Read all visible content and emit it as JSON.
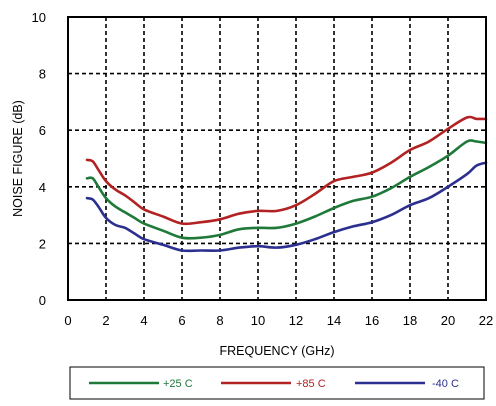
{
  "chart_data": {
    "type": "line",
    "title": "",
    "xlabel": "FREQUENCY (GHz)",
    "ylabel": "NOISE FIGURE (dB)",
    "xlim": [
      0,
      22
    ],
    "ylim": [
      0,
      10
    ],
    "xticks": [
      0,
      2,
      4,
      6,
      8,
      10,
      12,
      14,
      16,
      18,
      20,
      22
    ],
    "yticks": [
      0,
      2,
      4,
      6,
      8,
      10
    ],
    "grid": true,
    "legend_position": "bottom",
    "series": [
      {
        "name": "+25 C",
        "color": "#1f7a3a",
        "x": [
          1.0,
          1.3,
          1.6,
          2.0,
          2.5,
          3.0,
          3.5,
          4.0,
          5.0,
          6.0,
          7.0,
          8.0,
          9.0,
          10.0,
          11.0,
          12.0,
          13.0,
          14.0,
          15.0,
          16.0,
          17.0,
          18.0,
          19.0,
          20.0,
          21.0,
          21.5,
          22.0
        ],
        "y": [
          4.3,
          4.3,
          4.0,
          3.6,
          3.3,
          3.1,
          2.9,
          2.7,
          2.45,
          2.2,
          2.2,
          2.3,
          2.5,
          2.55,
          2.55,
          2.7,
          2.95,
          3.25,
          3.5,
          3.65,
          3.95,
          4.35,
          4.7,
          5.1,
          5.6,
          5.6,
          5.55
        ]
      },
      {
        "name": "+85 C",
        "color": "#b22222",
        "x": [
          1.0,
          1.3,
          1.6,
          2.0,
          2.5,
          3.0,
          3.5,
          4.0,
          5.0,
          6.0,
          7.0,
          8.0,
          9.0,
          10.0,
          11.0,
          12.0,
          13.0,
          14.0,
          15.0,
          16.0,
          17.0,
          18.0,
          19.0,
          20.0,
          21.0,
          21.5,
          22.0
        ],
        "y": [
          4.95,
          4.9,
          4.6,
          4.2,
          3.9,
          3.7,
          3.45,
          3.2,
          2.95,
          2.7,
          2.75,
          2.85,
          3.05,
          3.15,
          3.15,
          3.35,
          3.75,
          4.2,
          4.35,
          4.5,
          4.85,
          5.3,
          5.6,
          6.05,
          6.45,
          6.4,
          6.4
        ]
      },
      {
        "name": "-40 C",
        "color": "#2b2f8f",
        "x": [
          1.0,
          1.3,
          1.6,
          2.0,
          2.5,
          3.0,
          3.5,
          4.0,
          5.0,
          6.0,
          7.0,
          8.0,
          9.0,
          10.0,
          11.0,
          12.0,
          13.0,
          14.0,
          15.0,
          16.0,
          17.0,
          18.0,
          19.0,
          20.0,
          21.0,
          21.5,
          22.0
        ],
        "y": [
          3.6,
          3.55,
          3.3,
          2.9,
          2.65,
          2.55,
          2.35,
          2.15,
          1.95,
          1.75,
          1.75,
          1.75,
          1.85,
          1.9,
          1.85,
          1.95,
          2.15,
          2.4,
          2.6,
          2.75,
          3.0,
          3.35,
          3.6,
          4.0,
          4.45,
          4.75,
          4.85
        ]
      }
    ]
  }
}
